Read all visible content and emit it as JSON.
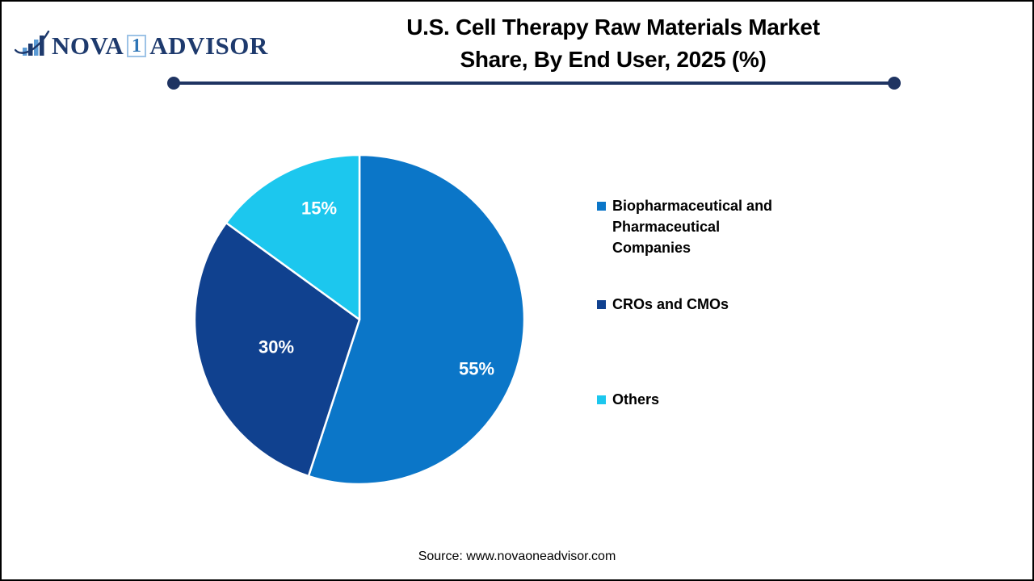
{
  "logo": {
    "brand_part1": "NOVA",
    "brand_boxed": "1",
    "brand_part2": "ADVISOR",
    "icon": "bar-chart-swoosh-icon",
    "colors": {
      "navy": "#1e3a6d",
      "light_blue": "#5b9bd5",
      "box_border": "#9dc3e6",
      "one_blue": "#2e75b6"
    }
  },
  "header": {
    "title_line1": "U.S. Cell Therapy Raw Materials Market",
    "title_line2": "Share, By End User, 2025 (%)",
    "underline_color": "#1f3462"
  },
  "chart_data": {
    "type": "pie",
    "title": "U.S. Cell Therapy Raw Materials Market Share, By End User, 2025 (%)",
    "start_angle_deg": 0,
    "direction": "clockwise",
    "legend_position": "right",
    "slices": [
      {
        "label": "Biopharmaceutical and Pharmaceutical Companies",
        "value": 55,
        "data_label": "55%",
        "color": "#0b76c8"
      },
      {
        "label": "CROs and CMOs",
        "value": 30,
        "data_label": "30%",
        "color": "#10418f"
      },
      {
        "label": "Others",
        "value": 15,
        "data_label": "15%",
        "color": "#1cc7ee"
      }
    ]
  },
  "footer": {
    "source": "Source: www.novaoneadvisor.com"
  }
}
